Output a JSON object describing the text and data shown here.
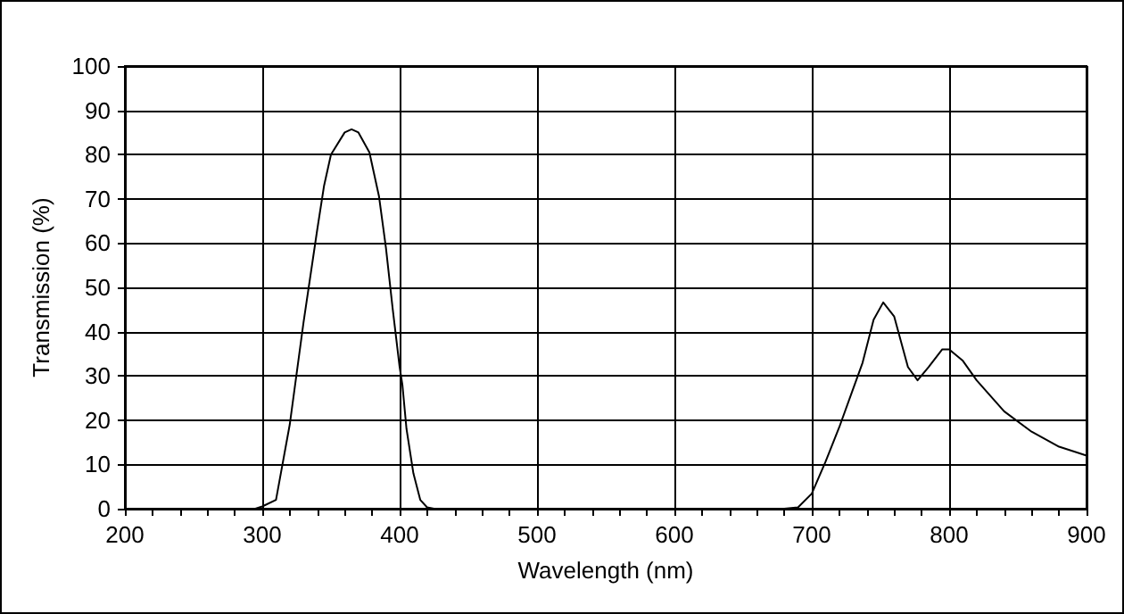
{
  "chart_data": {
    "type": "line",
    "xlabel": "Wavelength (nm)",
    "ylabel": "Transmission (%)",
    "xlim": [
      200,
      900
    ],
    "xticks": [
      200,
      300,
      400,
      500,
      600,
      700,
      800,
      900
    ],
    "ylim": [
      0,
      100
    ],
    "yticks": [
      0,
      10,
      20,
      30,
      40,
      50,
      60,
      70,
      80,
      90,
      100
    ],
    "grid": true,
    "marker": "none",
    "line_style": "solid",
    "series": [
      {
        "color": "#000000",
        "x": [
          200,
          250,
          295,
          300,
          310,
          320,
          330,
          340,
          345,
          350,
          360,
          365,
          370,
          378,
          385,
          390,
          395,
          400,
          402,
          405,
          410,
          415,
          420,
          425,
          500,
          600,
          680,
          690,
          700,
          710,
          720,
          730,
          737,
          745,
          752,
          760,
          770,
          777,
          785,
          795,
          800,
          810,
          820,
          840,
          860,
          880,
          900
        ],
        "values": [
          0,
          0,
          0,
          0.5,
          2,
          19,
          42,
          63,
          73,
          80,
          85,
          85.7,
          85,
          80.5,
          70.5,
          59,
          45,
          32,
          28,
          18,
          8,
          2,
          0.3,
          0,
          0,
          0,
          0,
          0.3,
          3.4,
          10.6,
          18.4,
          27,
          33,
          42.7,
          46.6,
          43.4,
          32,
          29,
          32,
          36,
          36,
          33.4,
          29,
          22,
          17.4,
          14,
          12
        ]
      }
    ]
  }
}
